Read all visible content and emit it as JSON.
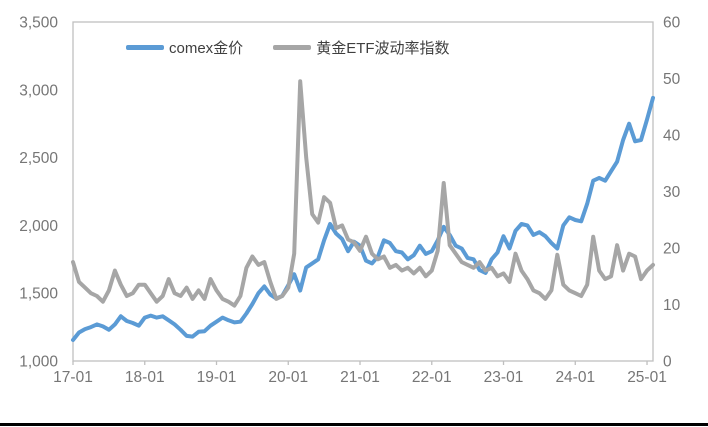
{
  "page": {
    "background": "#ffffff",
    "bottom_rule_color": "#000000"
  },
  "colors": {
    "axis_text": "#767676",
    "legend_text": "#3f3f3f",
    "plot_border": "#bfbfbf",
    "comex_blue": "#5B9BD5",
    "etf_vol_gray": "#A6A6A6"
  },
  "chart_data": {
    "type": "line",
    "title": "",
    "grid": "off",
    "legend_position": "top-inside",
    "x_unit": "month",
    "x_start": "17-01",
    "x_end": "25-02",
    "points_per_series": 98,
    "x_tick_labels": [
      "17-01",
      "18-01",
      "19-01",
      "20-01",
      "21-01",
      "22-01",
      "23-01",
      "24-01",
      "25-01"
    ],
    "x_tick_indices": [
      0,
      12,
      24,
      36,
      48,
      60,
      72,
      84,
      96
    ],
    "left_axis": {
      "min": 1000,
      "max": 3500,
      "tick_values": [
        3500,
        3000,
        2500,
        2000,
        1500,
        1000
      ],
      "tick_labels": [
        "3,500",
        "3,000",
        "2,500",
        "2,000",
        "1,500",
        "1,000"
      ]
    },
    "right_axis": {
      "min": 0,
      "max": 60,
      "tick_values": [
        60,
        50,
        40,
        30,
        20,
        10,
        0
      ],
      "tick_labels": [
        "60",
        "50",
        "40",
        "30",
        "20",
        "10",
        "0"
      ]
    },
    "series": [
      {
        "name": "comex金价",
        "axis": "left",
        "color": "#5B9BD5",
        "values": [
          1155,
          1210,
          1235,
          1250,
          1270,
          1255,
          1230,
          1270,
          1330,
          1295,
          1280,
          1260,
          1320,
          1335,
          1320,
          1330,
          1300,
          1270,
          1230,
          1185,
          1180,
          1215,
          1220,
          1260,
          1290,
          1320,
          1300,
          1285,
          1290,
          1350,
          1420,
          1500,
          1550,
          1490,
          1460,
          1480,
          1560,
          1640,
          1520,
          1690,
          1720,
          1750,
          1890,
          2010,
          1940,
          1900,
          1810,
          1880,
          1850,
          1740,
          1720,
          1770,
          1890,
          1870,
          1810,
          1800,
          1750,
          1780,
          1850,
          1790,
          1810,
          1890,
          1990,
          1930,
          1850,
          1830,
          1760,
          1750,
          1670,
          1650,
          1750,
          1800,
          1920,
          1830,
          1960,
          2010,
          2000,
          1930,
          1950,
          1920,
          1870,
          1830,
          2000,
          2060,
          2040,
          2030,
          2160,
          2330,
          2350,
          2330,
          2400,
          2470,
          2630,
          2750,
          2620,
          2630,
          2780,
          2940
        ]
      },
      {
        "name": "黄金ETF波动率指数",
        "axis": "right",
        "color": "#A6A6A6",
        "values": [
          17.5,
          14.0,
          13.0,
          12.0,
          11.5,
          10.5,
          12.5,
          16.0,
          13.5,
          11.5,
          12.0,
          13.5,
          13.5,
          12.0,
          10.5,
          11.5,
          14.5,
          12.0,
          11.5,
          13.0,
          11.0,
          12.5,
          11.0,
          14.5,
          12.5,
          11.0,
          10.5,
          9.8,
          11.5,
          16.5,
          18.5,
          17.0,
          17.5,
          14.0,
          11.0,
          11.5,
          13.0,
          19.0,
          49.5,
          36.0,
          26.0,
          24.5,
          29.0,
          28.0,
          23.5,
          24.0,
          21.5,
          21.0,
          19.5,
          22.0,
          19.0,
          18.0,
          18.5,
          16.5,
          17.0,
          16.0,
          16.5,
          15.5,
          16.5,
          15.0,
          16.0,
          19.5,
          31.5,
          20.5,
          19.0,
          17.5,
          17.0,
          16.5,
          17.5,
          16.0,
          16.5,
          15.0,
          15.5,
          14.0,
          19.0,
          16.0,
          14.5,
          12.5,
          12.0,
          11.0,
          12.5,
          18.8,
          13.5,
          12.5,
          12.0,
          11.5,
          13.5,
          22.0,
          16.0,
          14.5,
          15.0,
          20.5,
          16.0,
          19.0,
          18.5,
          14.5,
          16.0,
          17.0
        ]
      }
    ]
  }
}
